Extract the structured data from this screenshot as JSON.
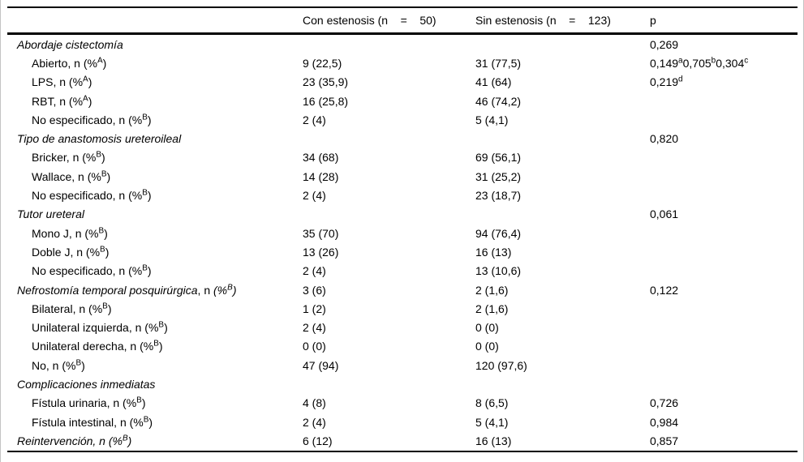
{
  "table": {
    "header": {
      "label": "",
      "con": "Con estenosis (n    =    50)",
      "sin": "Sin estenosis (n    =    123)",
      "p": "p"
    },
    "rows": [
      {
        "indent": false,
        "label": [
          {
            "t": "Abordaje cistectomía",
            "i": true
          }
        ],
        "con": "",
        "sin": "",
        "p": "0,269"
      },
      {
        "indent": true,
        "label": [
          {
            "t": "Abierto, n (%"
          },
          {
            "t": "A",
            "sup": true
          },
          {
            "t": ")"
          }
        ],
        "con": "9 (22,5)",
        "sin": "31 (77,5)",
        "p": [
          {
            "t": "0,149"
          },
          {
            "t": "a",
            "sup": true
          },
          {
            "t": "0,705"
          },
          {
            "t": "b",
            "sup": true
          },
          {
            "t": "0,304"
          },
          {
            "t": "c",
            "sup": true
          }
        ]
      },
      {
        "indent": true,
        "label": [
          {
            "t": "LPS, n (%"
          },
          {
            "t": "A",
            "sup": true
          },
          {
            "t": ")"
          }
        ],
        "con": "23 (35,9)",
        "sin": "41 (64)",
        "p": [
          {
            "t": "0,219"
          },
          {
            "t": "d",
            "sup": true
          }
        ]
      },
      {
        "indent": true,
        "label": [
          {
            "t": "RBT, n (%"
          },
          {
            "t": "A",
            "sup": true
          },
          {
            "t": ")"
          }
        ],
        "con": "16 (25,8)",
        "sin": "46 (74,2)",
        "p": ""
      },
      {
        "indent": true,
        "label": [
          {
            "t": "No especificado, n (%"
          },
          {
            "t": "B",
            "sup": true
          },
          {
            "t": ")"
          }
        ],
        "con": "2 (4)",
        "sin": "5 (4,1)",
        "p": ""
      },
      {
        "indent": false,
        "label": [
          {
            "t": "Tipo de anastomosis ureteroileal",
            "i": true
          }
        ],
        "con": "",
        "sin": "",
        "p": "0,820"
      },
      {
        "indent": true,
        "label": [
          {
            "t": "Bricker, n (%"
          },
          {
            "t": "B",
            "sup": true
          },
          {
            "t": ")"
          }
        ],
        "con": "34 (68)",
        "sin": "69 (56,1)",
        "p": ""
      },
      {
        "indent": true,
        "label": [
          {
            "t": "Wallace, n (%"
          },
          {
            "t": "B",
            "sup": true
          },
          {
            "t": ")"
          }
        ],
        "con": "14 (28)",
        "sin": "31 (25,2)",
        "p": ""
      },
      {
        "indent": true,
        "label": [
          {
            "t": "No especificado, n (%"
          },
          {
            "t": "B",
            "sup": true
          },
          {
            "t": ")"
          }
        ],
        "con": "2 (4)",
        "sin": "23 (18,7)",
        "p": ""
      },
      {
        "indent": false,
        "label": [
          {
            "t": "Tutor ureteral",
            "i": true
          }
        ],
        "con": "",
        "sin": "",
        "p": "0,061"
      },
      {
        "indent": true,
        "label": [
          {
            "t": "Mono J, n (%"
          },
          {
            "t": "B",
            "sup": true
          },
          {
            "t": ")"
          }
        ],
        "con": "35 (70)",
        "sin": "94 (76,4)",
        "p": ""
      },
      {
        "indent": true,
        "label": [
          {
            "t": "Doble J, n (%"
          },
          {
            "t": "B",
            "sup": true
          },
          {
            "t": ")"
          }
        ],
        "con": "13 (26)",
        "sin": "16 (13)",
        "p": ""
      },
      {
        "indent": true,
        "label": [
          {
            "t": "No especificado, n (%"
          },
          {
            "t": "B",
            "sup": true
          },
          {
            "t": ")"
          }
        ],
        "con": "2 (4)",
        "sin": "13 (10,6)",
        "p": ""
      },
      {
        "indent": false,
        "label": [
          {
            "t": "Nefrostomía temporal posquirúrgica",
            "i": true
          },
          {
            "t": ", n "
          },
          {
            "t": "(%",
            "i": true
          },
          {
            "t": "B",
            "sup": true,
            "i": true
          },
          {
            "t": ")",
            "i": true
          }
        ],
        "con": "3 (6)",
        "sin": "2 (1,6)",
        "p": "0,122"
      },
      {
        "indent": true,
        "label": [
          {
            "t": "Bilateral, n (%"
          },
          {
            "t": "B",
            "sup": true
          },
          {
            "t": ")"
          }
        ],
        "con": "1 (2)",
        "sin": "2 (1,6)",
        "p": ""
      },
      {
        "indent": true,
        "label": [
          {
            "t": "Unilateral izquierda, n (%"
          },
          {
            "t": "B",
            "sup": true
          },
          {
            "t": ")"
          }
        ],
        "con": "2 (4)",
        "sin": "0 (0)",
        "p": ""
      },
      {
        "indent": true,
        "label": [
          {
            "t": "Unilateral derecha, n (%"
          },
          {
            "t": "B",
            "sup": true
          },
          {
            "t": ")"
          }
        ],
        "con": "0 (0)",
        "sin": "0 (0)",
        "p": ""
      },
      {
        "indent": true,
        "label": [
          {
            "t": "No, n (%"
          },
          {
            "t": "B",
            "sup": true
          },
          {
            "t": ")"
          }
        ],
        "con": "47 (94)",
        "sin": "120 (97,6)",
        "p": ""
      },
      {
        "indent": false,
        "label": [
          {
            "t": "Complicaciones inmediatas",
            "i": true
          }
        ],
        "con": "",
        "sin": "",
        "p": ""
      },
      {
        "indent": true,
        "label": [
          {
            "t": "Fístula urinaria, n (%"
          },
          {
            "t": "B",
            "sup": true
          },
          {
            "t": ")"
          }
        ],
        "con": "4 (8)",
        "sin": "8 (6,5)",
        "p": "0,726"
      },
      {
        "indent": true,
        "label": [
          {
            "t": "Fístula intestinal, n (%"
          },
          {
            "t": "B",
            "sup": true
          },
          {
            "t": ")"
          }
        ],
        "con": "2 (4)",
        "sin": "5 (4,1)",
        "p": "0,984"
      },
      {
        "indent": false,
        "label": [
          {
            "t": "Reintervención, n (%",
            "i": true
          },
          {
            "t": "B",
            "sup": true,
            "i": true
          },
          {
            "t": ")",
            "i": true
          }
        ],
        "con": "6 (12)",
        "sin": "16 (13)",
        "p": "0,857"
      }
    ]
  }
}
